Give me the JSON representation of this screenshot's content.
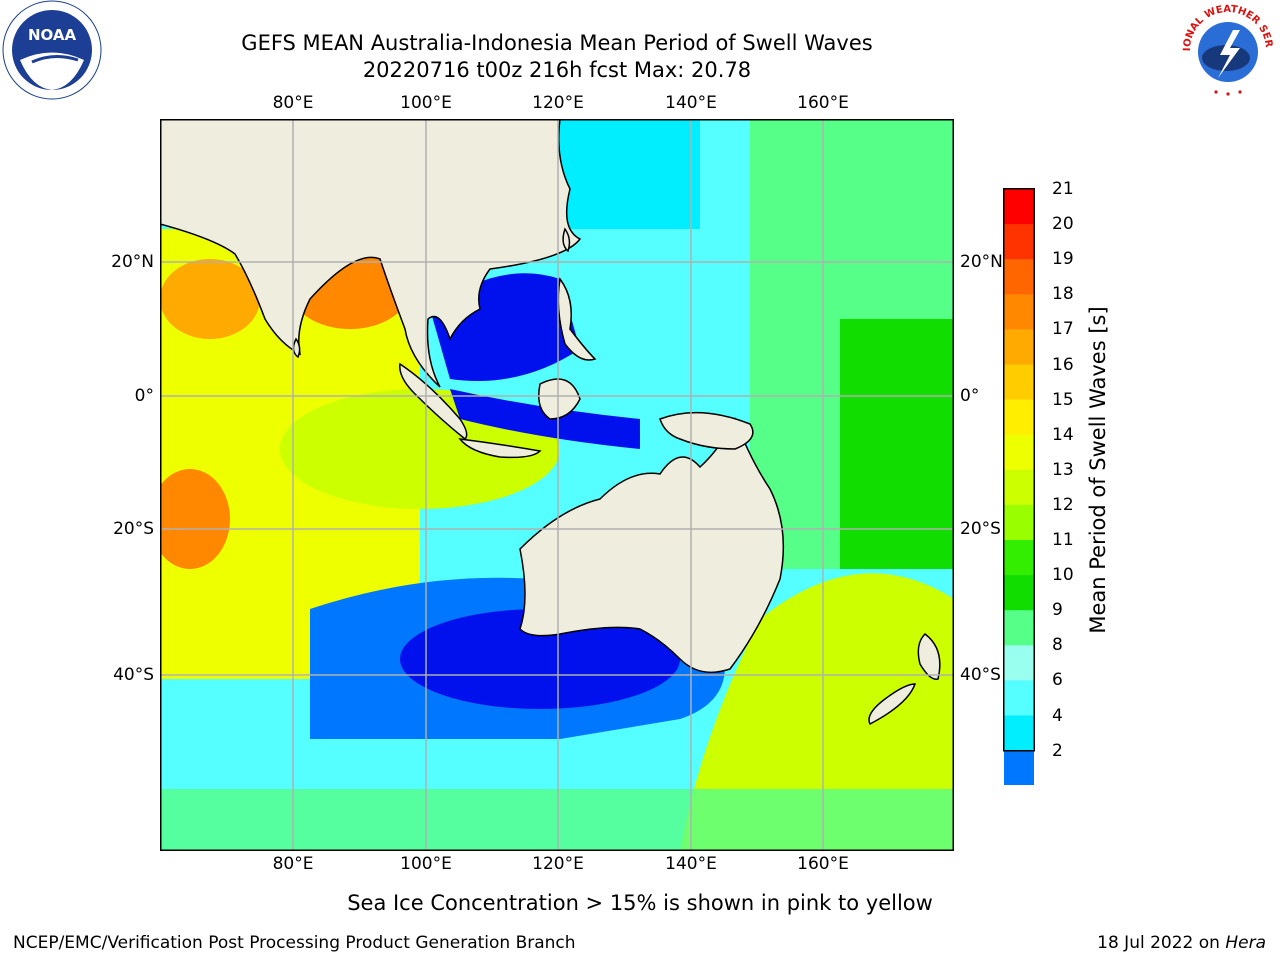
{
  "title": {
    "line1": "GEFS MEAN Australia-Indonesia Mean Period of Swell Waves",
    "line2": "20220716 t00z 216h fcst   Max: 20.78"
  },
  "map": {
    "lon_ticks": [
      "80°E",
      "100°E",
      "120°E",
      "140°E",
      "160°E"
    ],
    "lat_ticks": [
      "20°N",
      "0°",
      "20°S",
      "40°S"
    ],
    "land_color": "#efedde",
    "grid_color": "#b0b0b0"
  },
  "colorbar": {
    "title": "Mean Period of Swell Waves [s]",
    "labels": [
      "21",
      "20",
      "19",
      "18",
      "17",
      "16",
      "15",
      "14",
      "13",
      "12",
      "11",
      "10",
      "9",
      "8",
      "6",
      "4",
      "2"
    ],
    "colors": [
      "#ff0000",
      "#ff3300",
      "#ff6600",
      "#ff8800",
      "#ffaa00",
      "#ffcc00",
      "#ffee00",
      "#eeff00",
      "#ccff00",
      "#99ff00",
      "#33ee00",
      "#11dd00",
      "#55ff88",
      "#99ffee",
      "#55ffff",
      "#00eeff",
      "#0077ff"
    ],
    "extend_color": "#0011ee"
  },
  "footnote": "Sea Ice Concentration > 15% is shown in pink to yellow",
  "credit": {
    "left": "NCEP/EMC/Verification Post Processing Product Generation Branch",
    "date": "18 Jul 2022 on ",
    "host": "Hera"
  },
  "logos": {
    "noaa": "NOAA",
    "nws": "NATIONAL WEATHER SERVICE"
  }
}
